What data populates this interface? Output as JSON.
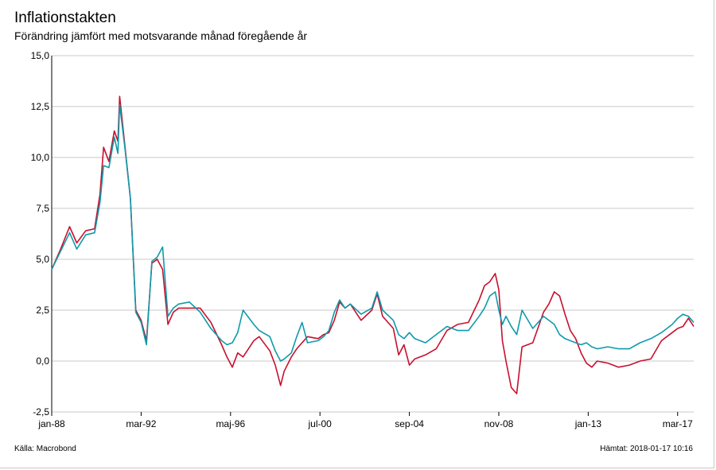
{
  "header": {
    "title": "Inflationstakten",
    "subtitle": "Förändring jämfört med motsvarande månad föregående år"
  },
  "footer": {
    "source": "Källa: Macrobond",
    "retrieved": "Hämtat: 2018-01-17 10:16"
  },
  "colors": {
    "series_red": "#c8102e",
    "series_teal": "#0f9aaa",
    "grid": "#c8c8c8",
    "axis": "#000000"
  },
  "chart_data": {
    "type": "line",
    "title": "Inflationstakten",
    "subtitle": "Förändring jämfört med motsvarande månad föregående år",
    "xlabel": "",
    "ylabel": "",
    "x_range": [
      "1988-01",
      "2017-12"
    ],
    "ylim": [
      -2.5,
      15.0
    ],
    "y_ticks": [
      -2.5,
      0.0,
      2.5,
      5.0,
      7.5,
      10.0,
      12.5,
      15.0
    ],
    "y_tick_labels": [
      "-2,5",
      "0,0",
      "2,5",
      "5,0",
      "7,5",
      "10,0",
      "12,5",
      "15,0"
    ],
    "x_tick_labels": [
      {
        "date": "1988-01",
        "label": "jan-88"
      },
      {
        "date": "1992-03",
        "label": "mar-92"
      },
      {
        "date": "1996-05",
        "label": "maj-96"
      },
      {
        "date": "2000-07",
        "label": "jul-00"
      },
      {
        "date": "2004-09",
        "label": "sep-04"
      },
      {
        "date": "2008-11",
        "label": "nov-08"
      },
      {
        "date": "2013-01",
        "label": "jan-13"
      },
      {
        "date": "2017-03",
        "label": "mar-17"
      }
    ],
    "grid": "horizontal",
    "legend": "none",
    "series": [
      {
        "color": "#c8102e",
        "points": [
          [
            "1988-01",
            4.5
          ],
          [
            "1988-06",
            5.5
          ],
          [
            "1988-11",
            6.6
          ],
          [
            "1989-03",
            5.8
          ],
          [
            "1989-08",
            6.4
          ],
          [
            "1990-01",
            6.5
          ],
          [
            "1990-04",
            8.2
          ],
          [
            "1990-06",
            10.5
          ],
          [
            "1990-09",
            9.8
          ],
          [
            "1990-12",
            11.3
          ],
          [
            "1991-02",
            10.8
          ],
          [
            "1991-03",
            13.0
          ],
          [
            "1991-06",
            10.5
          ],
          [
            "1991-09",
            8.0
          ],
          [
            "1991-12",
            2.5
          ],
          [
            "1992-03",
            2.0
          ],
          [
            "1992-06",
            1.0
          ],
          [
            "1992-09",
            4.8
          ],
          [
            "1992-12",
            5.0
          ],
          [
            "1993-03",
            4.5
          ],
          [
            "1993-06",
            1.8
          ],
          [
            "1993-09",
            2.4
          ],
          [
            "1993-12",
            2.6
          ],
          [
            "1994-06",
            2.6
          ],
          [
            "1994-12",
            2.6
          ],
          [
            "1995-06",
            1.9
          ],
          [
            "1995-12",
            0.8
          ],
          [
            "1996-03",
            0.2
          ],
          [
            "1996-06",
            -0.3
          ],
          [
            "1996-09",
            0.4
          ],
          [
            "1996-12",
            0.2
          ],
          [
            "1997-06",
            1.0
          ],
          [
            "1997-09",
            1.2
          ],
          [
            "1998-03",
            0.5
          ],
          [
            "1998-06",
            -0.2
          ],
          [
            "1998-09",
            -1.2
          ],
          [
            "1998-11",
            -0.5
          ],
          [
            "1999-03",
            0.2
          ],
          [
            "1999-06",
            0.6
          ],
          [
            "1999-09",
            0.9
          ],
          [
            "1999-12",
            1.2
          ],
          [
            "2000-06",
            1.1
          ],
          [
            "2000-09",
            1.3
          ],
          [
            "2000-12",
            1.4
          ],
          [
            "2001-03",
            2.0
          ],
          [
            "2001-06",
            2.9
          ],
          [
            "2001-09",
            2.6
          ],
          [
            "2001-12",
            2.8
          ],
          [
            "2002-06",
            2.0
          ],
          [
            "2002-12",
            2.5
          ],
          [
            "2003-03",
            3.3
          ],
          [
            "2003-06",
            2.2
          ],
          [
            "2003-12",
            1.6
          ],
          [
            "2004-03",
            0.3
          ],
          [
            "2004-06",
            0.8
          ],
          [
            "2004-09",
            -0.2
          ],
          [
            "2004-12",
            0.1
          ],
          [
            "2005-06",
            0.3
          ],
          [
            "2005-12",
            0.6
          ],
          [
            "2006-06",
            1.5
          ],
          [
            "2006-12",
            1.8
          ],
          [
            "2007-06",
            1.9
          ],
          [
            "2007-12",
            3.0
          ],
          [
            "2008-03",
            3.7
          ],
          [
            "2008-06",
            3.9
          ],
          [
            "2008-09",
            4.3
          ],
          [
            "2008-11",
            3.5
          ],
          [
            "2009-01",
            1.0
          ],
          [
            "2009-03",
            0.0
          ],
          [
            "2009-06",
            -1.3
          ],
          [
            "2009-09",
            -1.6
          ],
          [
            "2009-12",
            0.7
          ],
          [
            "2010-06",
            0.9
          ],
          [
            "2010-12",
            2.4
          ],
          [
            "2011-03",
            2.8
          ],
          [
            "2011-06",
            3.4
          ],
          [
            "2011-09",
            3.2
          ],
          [
            "2011-12",
            2.3
          ],
          [
            "2012-03",
            1.5
          ],
          [
            "2012-06",
            1.1
          ],
          [
            "2012-09",
            0.4
          ],
          [
            "2012-12",
            -0.1
          ],
          [
            "2013-03",
            -0.3
          ],
          [
            "2013-06",
            0.0
          ],
          [
            "2013-12",
            -0.1
          ],
          [
            "2014-06",
            -0.3
          ],
          [
            "2014-12",
            -0.2
          ],
          [
            "2015-06",
            0.0
          ],
          [
            "2015-12",
            0.1
          ],
          [
            "2016-06",
            1.0
          ],
          [
            "2016-12",
            1.4
          ],
          [
            "2017-03",
            1.6
          ],
          [
            "2017-06",
            1.7
          ],
          [
            "2017-09",
            2.1
          ],
          [
            "2017-12",
            1.7
          ]
        ]
      },
      {
        "color": "#0f9aaa",
        "points": [
          [
            "1988-01",
            4.5
          ],
          [
            "1988-06",
            5.4
          ],
          [
            "1988-11",
            6.3
          ],
          [
            "1989-03",
            5.5
          ],
          [
            "1989-08",
            6.2
          ],
          [
            "1990-01",
            6.3
          ],
          [
            "1990-04",
            7.8
          ],
          [
            "1990-06",
            9.6
          ],
          [
            "1990-09",
            9.5
          ],
          [
            "1990-12",
            11.0
          ],
          [
            "1991-02",
            10.2
          ],
          [
            "1991-03",
            12.6
          ],
          [
            "1991-06",
            10.4
          ],
          [
            "1991-09",
            8.0
          ],
          [
            "1991-12",
            2.4
          ],
          [
            "1992-03",
            1.9
          ],
          [
            "1992-06",
            0.8
          ],
          [
            "1992-09",
            4.9
          ],
          [
            "1992-12",
            5.1
          ],
          [
            "1993-03",
            5.6
          ],
          [
            "1993-06",
            2.2
          ],
          [
            "1993-09",
            2.6
          ],
          [
            "1993-12",
            2.8
          ],
          [
            "1994-06",
            2.9
          ],
          [
            "1994-12",
            2.4
          ],
          [
            "1995-06",
            1.6
          ],
          [
            "1995-12",
            1.0
          ],
          [
            "1996-03",
            0.8
          ],
          [
            "1996-06",
            0.9
          ],
          [
            "1996-09",
            1.4
          ],
          [
            "1996-12",
            2.5
          ],
          [
            "1997-06",
            1.8
          ],
          [
            "1997-09",
            1.5
          ],
          [
            "1998-03",
            1.2
          ],
          [
            "1998-06",
            0.5
          ],
          [
            "1998-09",
            0.0
          ],
          [
            "1998-11",
            0.1
          ],
          [
            "1999-03",
            0.4
          ],
          [
            "1999-06",
            1.2
          ],
          [
            "1999-09",
            1.9
          ],
          [
            "1999-12",
            0.9
          ],
          [
            "2000-06",
            1.0
          ],
          [
            "2000-09",
            1.2
          ],
          [
            "2000-12",
            1.5
          ],
          [
            "2001-03",
            2.4
          ],
          [
            "2001-06",
            3.0
          ],
          [
            "2001-09",
            2.6
          ],
          [
            "2001-12",
            2.8
          ],
          [
            "2002-06",
            2.3
          ],
          [
            "2002-12",
            2.6
          ],
          [
            "2003-03",
            3.4
          ],
          [
            "2003-06",
            2.5
          ],
          [
            "2003-12",
            2.0
          ],
          [
            "2004-03",
            1.3
          ],
          [
            "2004-06",
            1.1
          ],
          [
            "2004-09",
            1.4
          ],
          [
            "2004-12",
            1.1
          ],
          [
            "2005-06",
            0.9
          ],
          [
            "2005-12",
            1.3
          ],
          [
            "2006-06",
            1.7
          ],
          [
            "2006-12",
            1.5
          ],
          [
            "2007-06",
            1.5
          ],
          [
            "2007-12",
            2.2
          ],
          [
            "2008-03",
            2.6
          ],
          [
            "2008-06",
            3.2
          ],
          [
            "2008-09",
            3.4
          ],
          [
            "2008-11",
            2.5
          ],
          [
            "2009-01",
            1.8
          ],
          [
            "2009-03",
            2.2
          ],
          [
            "2009-06",
            1.7
          ],
          [
            "2009-09",
            1.3
          ],
          [
            "2009-12",
            2.5
          ],
          [
            "2010-06",
            1.6
          ],
          [
            "2010-12",
            2.2
          ],
          [
            "2011-03",
            2.0
          ],
          [
            "2011-06",
            1.8
          ],
          [
            "2011-09",
            1.3
          ],
          [
            "2011-12",
            1.1
          ],
          [
            "2012-03",
            1.0
          ],
          [
            "2012-06",
            0.9
          ],
          [
            "2012-09",
            0.8
          ],
          [
            "2012-12",
            0.9
          ],
          [
            "2013-03",
            0.7
          ],
          [
            "2013-06",
            0.6
          ],
          [
            "2013-12",
            0.7
          ],
          [
            "2014-06",
            0.6
          ],
          [
            "2014-12",
            0.6
          ],
          [
            "2015-06",
            0.9
          ],
          [
            "2015-12",
            1.1
          ],
          [
            "2016-06",
            1.4
          ],
          [
            "2016-12",
            1.8
          ],
          [
            "2017-03",
            2.1
          ],
          [
            "2017-06",
            2.3
          ],
          [
            "2017-09",
            2.2
          ],
          [
            "2017-12",
            1.9
          ]
        ]
      }
    ]
  }
}
